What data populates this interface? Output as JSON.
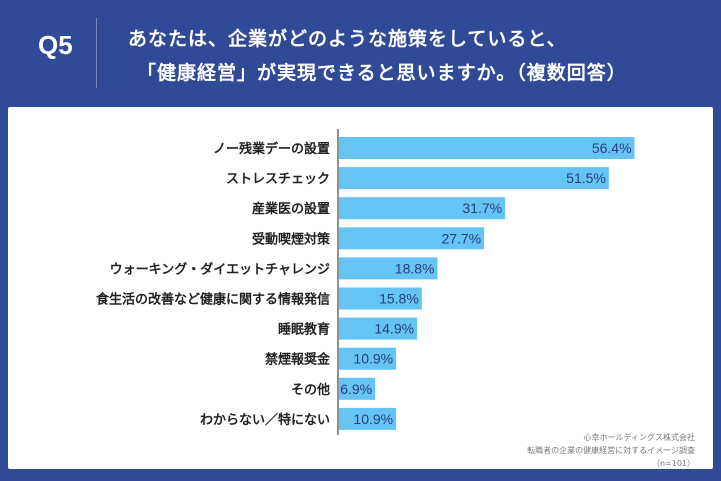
{
  "header": {
    "question_number": "Q5",
    "question_line1": "あなたは、企業がどのような施策をしていると、",
    "question_line2": "「健康経営」が実現できると思いますか。（複数回答）"
  },
  "source": {
    "line1": "心幸ホールディングス株式会社",
    "line2": "転職者の企業の健康経営に対するイメージ調査",
    "line3": "（n=101）"
  },
  "colors": {
    "frame": "#2f4b97",
    "bar": "#66c4f5",
    "axis": "#222222"
  },
  "chart_data": {
    "type": "bar",
    "orientation": "horizontal",
    "title": "",
    "xlabel": "",
    "ylabel": "",
    "unit": "%",
    "xlim": [
      0,
      60
    ],
    "grid": false,
    "categories": [
      "ノー残業デーの設置",
      "ストレスチェック",
      "産業医の設置",
      "受動喫煙対策",
      "ウォーキング・ダイエットチャレンジ",
      "食生活の改善など健康に関する情報発信",
      "睡眠教育",
      "禁煙報奨金",
      "その他",
      "わからない／特にない"
    ],
    "values": [
      56.4,
      51.5,
      31.7,
      27.7,
      18.8,
      15.8,
      14.9,
      10.9,
      6.9,
      10.9
    ],
    "value_labels": [
      "56.4%",
      "51.5%",
      "31.7%",
      "27.7%",
      "18.8%",
      "15.8%",
      "14.9%",
      "10.9%",
      "6.9%",
      "10.9%"
    ]
  }
}
